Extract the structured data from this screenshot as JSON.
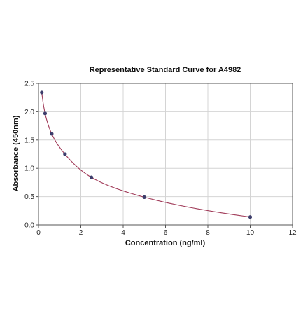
{
  "chart_data": {
    "type": "scatter",
    "title": "Representative Standard Curve for A4982",
    "xlabel": "Concentration (ng/ml)",
    "ylabel": "Absorbance (450nm)",
    "xlim": [
      0,
      12
    ],
    "ylim": [
      0.0,
      2.5
    ],
    "xticks": [
      0,
      2,
      4,
      6,
      8,
      10,
      12
    ],
    "yticks": [
      0.0,
      0.5,
      1.0,
      1.5,
      2.0,
      2.5
    ],
    "xtick_labels": [
      "0",
      "2",
      "4",
      "6",
      "8",
      "10",
      "12"
    ],
    "ytick_labels": [
      "0.0",
      "0.5",
      "1.0",
      "1.5",
      "2.0",
      "2.5"
    ],
    "grid": true,
    "legend": "none",
    "series": [
      {
        "x": [
          0.156,
          0.312,
          0.625,
          1.25,
          2.5,
          5,
          10
        ],
        "y": [
          2.34,
          1.97,
          1.61,
          1.25,
          0.84,
          0.49,
          0.14
        ]
      }
    ],
    "point_color": "#3d3d6b",
    "curve_color": "#a03a58"
  }
}
